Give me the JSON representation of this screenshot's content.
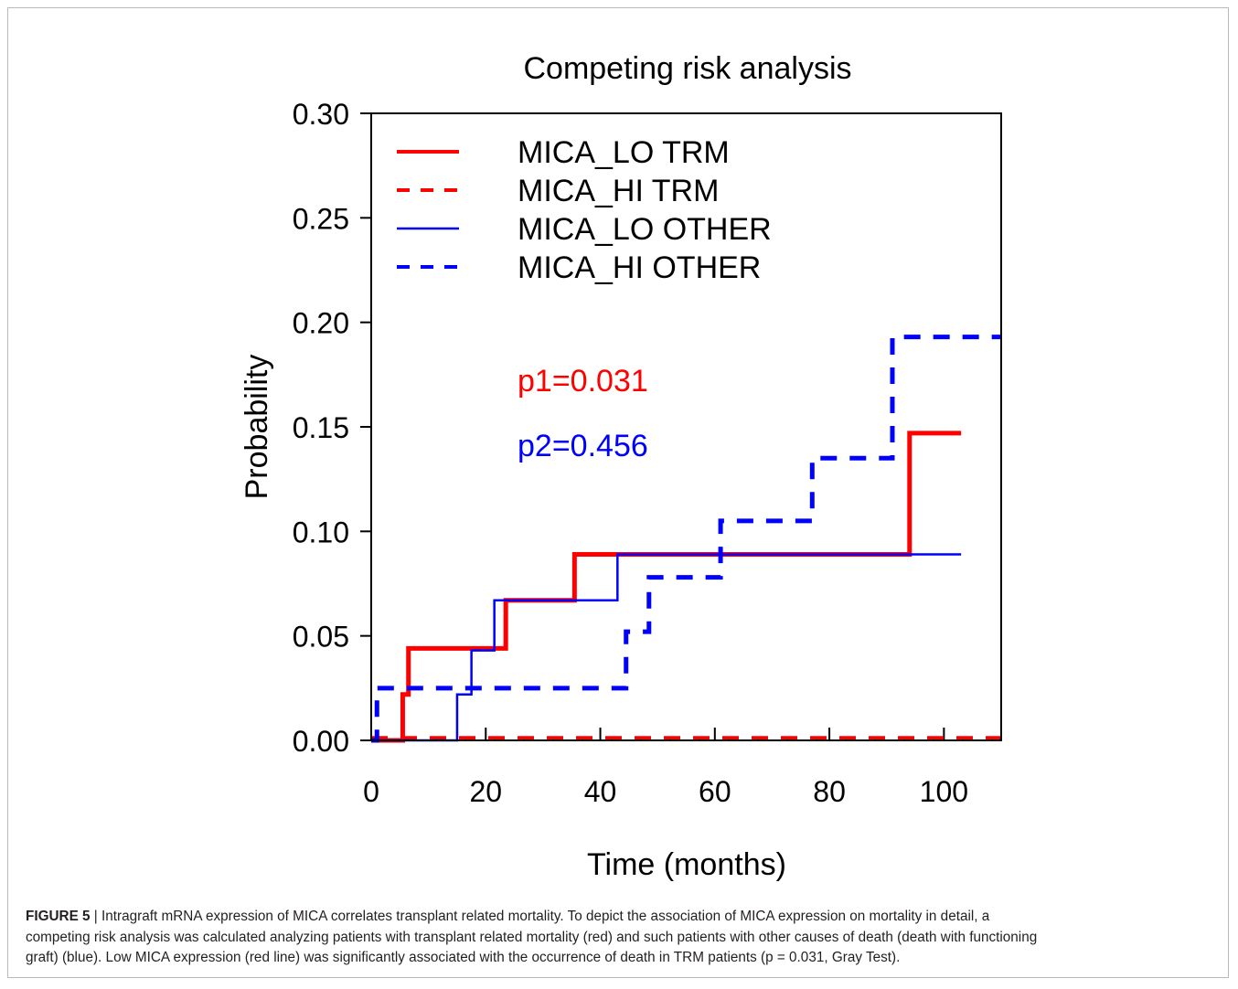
{
  "chart_data": {
    "type": "line",
    "title": "Competing risk analysis",
    "xlabel": "Time (months)",
    "ylabel": "Probability",
    "xlim": [
      0,
      110
    ],
    "ylim": [
      0,
      0.3
    ],
    "xticks": [
      0,
      20,
      40,
      60,
      80,
      100
    ],
    "xtick_labels": [
      "0",
      "20",
      "40",
      "60",
      "80",
      "100"
    ],
    "yticks": [
      0,
      0.05,
      0.1,
      0.15,
      0.2,
      0.25,
      0.3
    ],
    "ytick_labels": [
      "0.00",
      "0.05",
      "0.10",
      "0.15",
      "0.20",
      "0.25",
      "0.30"
    ],
    "grid": false,
    "legend_position": "top-left",
    "series": [
      {
        "name": "MICA_LO TRM",
        "color": "#ff0000",
        "line_style": "solid",
        "line_weight": "thick",
        "step": true,
        "x": [
          0,
          5.5,
          6.5,
          23.5,
          35.5,
          94,
          103
        ],
        "y": [
          0,
          0.022,
          0.044,
          0.067,
          0.089,
          0.147,
          0.147
        ]
      },
      {
        "name": "MICA_HI TRM",
        "color": "#ff0000",
        "line_style": "dashed",
        "line_weight": "thick",
        "step": true,
        "x": [
          0,
          110
        ],
        "y": [
          0.001,
          0.001
        ]
      },
      {
        "name": "MICA_LO OTHER",
        "color": "#0000ff",
        "line_style": "solid",
        "line_weight": "thin",
        "step": true,
        "x": [
          0,
          15,
          17.5,
          21.5,
          43,
          103
        ],
        "y": [
          0,
          0.022,
          0.043,
          0.067,
          0.089,
          0.089
        ]
      },
      {
        "name": "MICA_HI OTHER",
        "color": "#0000ff",
        "line_style": "dashed",
        "line_weight": "thick",
        "step": true,
        "x": [
          0,
          1,
          44.5,
          48.5,
          61,
          77,
          91,
          110
        ],
        "y": [
          0,
          0.025,
          0.052,
          0.078,
          0.105,
          0.135,
          0.193,
          0.193
        ]
      }
    ],
    "annotations": [
      {
        "text": "p1=0.031",
        "color": "#ff0000"
      },
      {
        "text": "p2=0.456",
        "color": "#0000ff"
      }
    ]
  },
  "caption": {
    "label": "FIGURE 5",
    "separator": " | ",
    "lines": [
      "Intragraft mRNA expression of MICA correlates transplant related mortality. To depict the association of MICA expression on mortality in detail, a",
      "competing risk analysis was calculated analyzing patients with transplant related mortality (red) and such patients with other causes of death (death with functioning",
      "graft) (blue). Low MICA expression (red line) was significantly associated with the occurrence of death in TRM patients (p = 0.031, Gray Test)."
    ]
  }
}
